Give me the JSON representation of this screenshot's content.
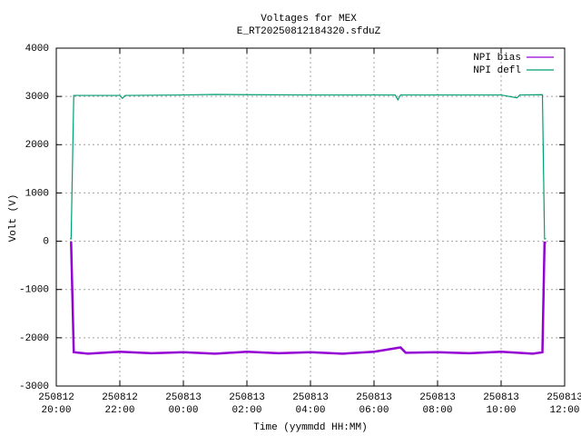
{
  "chart_data": {
    "type": "line",
    "title": "Voltages for MEX",
    "subtitle": "E_RT20250812184320.sfduZ",
    "x_label": "Time (yymmdd HH:MM)",
    "y_label": "Volt (V)",
    "xlim": [
      "250812 20:00",
      "250813 12:00"
    ],
    "xticks": [
      {
        "value": "250812 20:00",
        "label": [
          "250812",
          "20:00"
        ]
      },
      {
        "value": "250812 22:00",
        "label": [
          "250812",
          "22:00"
        ]
      },
      {
        "value": "250813 00:00",
        "label": [
          "250813",
          "00:00"
        ]
      },
      {
        "value": "250813 02:00",
        "label": [
          "250813",
          "02:00"
        ]
      },
      {
        "value": "250813 04:00",
        "label": [
          "250813",
          "04:00"
        ]
      },
      {
        "value": "250813 06:00",
        "label": [
          "250813",
          "06:00"
        ]
      },
      {
        "value": "250813 08:00",
        "label": [
          "250813",
          "08:00"
        ]
      },
      {
        "value": "250813 10:00",
        "label": [
          "250813",
          "10:00"
        ]
      },
      {
        "value": "250813 12:00",
        "label": [
          "250813",
          "12:00"
        ]
      }
    ],
    "ylim": [
      -3000,
      4000
    ],
    "yticks": [
      -3000,
      -2000,
      -1000,
      0,
      1000,
      2000,
      3000,
      4000
    ],
    "grid": true,
    "legend": "top-right",
    "series": [
      {
        "name": "NPI bias",
        "color": "#9400d3",
        "x": [
          "250812 20:26",
          "250812 20:28",
          "250812 20:33",
          "250812 21:00",
          "250812 22:00",
          "250812 23:00",
          "250813 00:00",
          "250813 01:00",
          "250813 02:00",
          "250813 03:00",
          "250813 04:00",
          "250813 05:00",
          "250813 06:00",
          "250813 06:50",
          "250813 07:00",
          "250813 08:00",
          "250813 09:00",
          "250813 10:00",
          "250813 11:00",
          "250813 11:18",
          "250813 11:22",
          "250813 11:25"
        ],
        "values": [
          -30,
          -30,
          -2300,
          -2330,
          -2290,
          -2320,
          -2300,
          -2330,
          -2290,
          -2320,
          -2300,
          -2330,
          -2290,
          -2200,
          -2310,
          -2300,
          -2320,
          -2290,
          -2330,
          -2300,
          -30,
          -30
        ]
      },
      {
        "name": "NPI defl",
        "color": "#009e73",
        "x": [
          "250812 20:26",
          "250812 20:28",
          "250812 20:33",
          "250812 21:00",
          "250812 22:00",
          "250812 22:05",
          "250812 22:10",
          "250813 00:00",
          "250813 01:00",
          "250813 02:00",
          "250813 04:00",
          "250813 06:40",
          "250813 06:45",
          "250813 06:50",
          "250813 08:00",
          "250813 10:00",
          "250813 10:30",
          "250813 10:35",
          "250813 11:18",
          "250813 11:22",
          "250813 11:25"
        ],
        "values": [
          50,
          50,
          3020,
          3020,
          3020,
          2960,
          3020,
          3030,
          3040,
          3035,
          3030,
          3030,
          2930,
          3030,
          3030,
          3030,
          2970,
          3030,
          3035,
          50,
          50
        ]
      }
    ]
  }
}
